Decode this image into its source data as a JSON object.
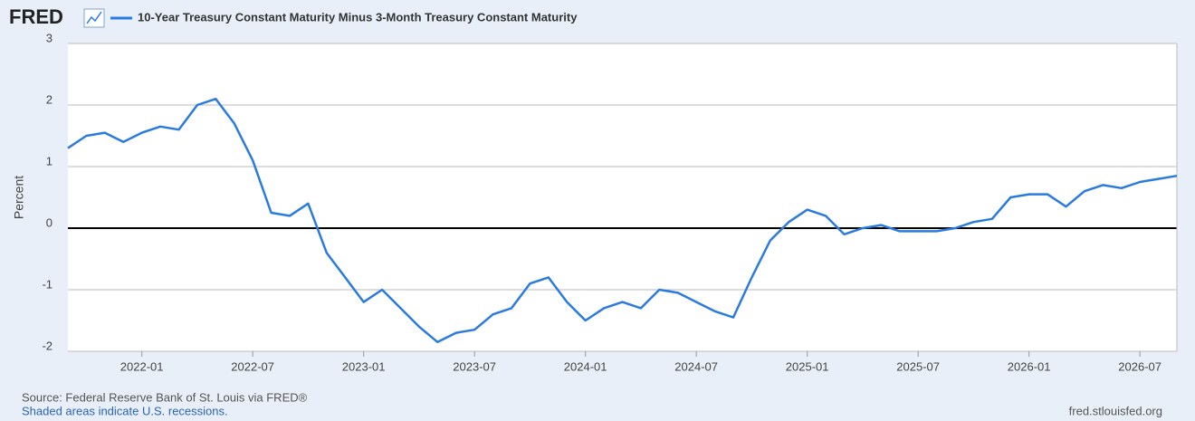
{
  "logo": "FRED",
  "chart_data": {
    "type": "line",
    "title": "10-Year Treasury Constant Maturity Minus 3-Month Treasury Constant Maturity",
    "y_label": "Percent",
    "x": [
      "2021-09",
      "2021-10",
      "2021-11",
      "2021-12",
      "2022-01",
      "2022-02",
      "2022-03",
      "2022-04",
      "2022-05",
      "2022-06",
      "2022-07",
      "2022-08",
      "2022-09",
      "2022-10",
      "2022-11",
      "2022-12",
      "2023-01",
      "2023-02",
      "2023-03",
      "2023-04",
      "2023-05",
      "2023-06",
      "2023-07",
      "2023-08",
      "2023-09",
      "2023-10",
      "2023-11",
      "2023-12",
      "2024-01",
      "2024-02",
      "2024-03",
      "2024-04",
      "2024-05",
      "2024-06",
      "2024-07",
      "2024-08",
      "2024-09",
      "2024-10",
      "2024-11",
      "2024-12",
      "2025-01",
      "2025-02",
      "2025-03",
      "2025-04",
      "2025-05",
      "2025-06",
      "2025-07",
      "2025-08",
      "2025-09",
      "2025-10",
      "2025-11",
      "2025-12",
      "2026-01",
      "2026-02",
      "2026-03",
      "2026-04",
      "2026-05",
      "2026-06",
      "2026-07",
      "2026-08",
      "2026-09"
    ],
    "series": [
      {
        "name": "10-Year Treasury Constant Maturity Minus 3-Month Treasury Constant Maturity",
        "color": "#2a7be0",
        "values": [
          1.3,
          1.5,
          1.55,
          1.4,
          1.55,
          1.65,
          1.6,
          2.0,
          2.1,
          1.7,
          1.1,
          0.25,
          0.2,
          0.4,
          -0.4,
          -0.8,
          -1.2,
          -1.0,
          -1.3,
          -1.6,
          -1.85,
          -1.7,
          -1.65,
          -1.4,
          -1.3,
          -0.9,
          -0.8,
          -1.2,
          -1.5,
          -1.3,
          -1.2,
          -1.3,
          -1.0,
          -1.05,
          -1.2,
          -1.35,
          -1.45,
          -0.8,
          -0.2,
          0.1,
          0.3,
          0.2,
          -0.1,
          0.0,
          0.05,
          -0.05,
          -0.05,
          -0.05,
          0.0,
          0.1,
          0.15,
          0.5,
          0.55,
          0.55,
          0.35,
          0.6,
          0.7,
          0.65,
          0.75,
          0.8,
          0.85
        ]
      }
    ],
    "xlim": [
      "2021-09",
      "2026-09"
    ],
    "xticks": [
      "2022-01",
      "2022-07",
      "2023-01",
      "2023-07",
      "2024-01",
      "2024-07",
      "2025-01",
      "2025-07",
      "2026-01",
      "2026-07"
    ],
    "ylim": [
      -2,
      3
    ],
    "yticks": [
      -2,
      -1,
      0,
      1,
      2,
      3
    ],
    "grid": true
  },
  "footer": {
    "source": "Source: Federal Reserve Bank of St. Louis via FRED®",
    "recessions": "Shaded areas indicate U.S. recessions.",
    "site": "fred.stlouisfed.org"
  }
}
